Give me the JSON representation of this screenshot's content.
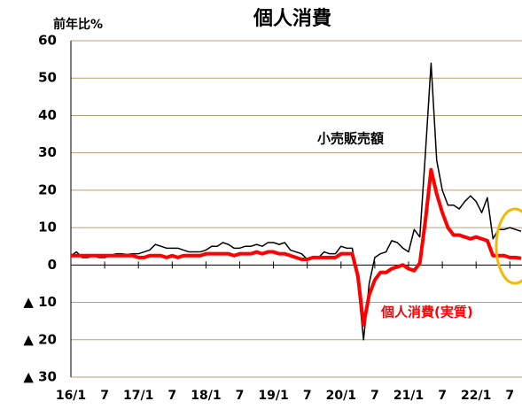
{
  "chart_data": {
    "type": "line",
    "title": "個人消費",
    "y_label": "前年比%",
    "categories": [
      "16/1",
      null,
      null,
      null,
      null,
      null,
      "7",
      null,
      null,
      null,
      null,
      null,
      "17/1",
      null,
      null,
      null,
      null,
      null,
      "7",
      null,
      null,
      null,
      null,
      null,
      "18/1",
      null,
      null,
      null,
      null,
      null,
      "7",
      null,
      null,
      null,
      null,
      null,
      "19/1",
      null,
      null,
      null,
      null,
      null,
      "7",
      null,
      null,
      null,
      null,
      null,
      "20/1",
      null,
      null,
      null,
      null,
      null,
      "7",
      null,
      null,
      null,
      null,
      null,
      "21/1",
      null,
      null,
      null,
      null,
      null,
      "7",
      null,
      null,
      null,
      null,
      null,
      "22/1",
      null,
      null,
      null,
      null,
      null,
      "7",
      null,
      null
    ],
    "series": [
      {
        "name": "小売販売額",
        "color": "#000000",
        "values": [
          2.5,
          3.5,
          2,
          2,
          2.5,
          2,
          2,
          2.5,
          3,
          3,
          2.8,
          3,
          3,
          3.5,
          4,
          5.5,
          5,
          4.5,
          4.5,
          4.5,
          4,
          3.5,
          3.5,
          3.5,
          4,
          5,
          5,
          6,
          5.5,
          4.5,
          4.5,
          5,
          5,
          5.5,
          5,
          6,
          6,
          5.5,
          6,
          4,
          3.5,
          3,
          1.5,
          2,
          2,
          3.5,
          3,
          3,
          5,
          4.5,
          4.5,
          -5,
          -20,
          -5,
          2,
          3,
          3.5,
          6.5,
          6,
          4.5,
          3.5,
          9.5,
          7.5,
          30,
          54,
          28,
          20,
          16,
          16,
          15,
          17,
          18.5,
          17,
          14,
          18,
          7,
          9.5,
          9.5,
          10,
          9.5,
          9
        ]
      },
      {
        "name": "個人消費(実質)",
        "color": "#ff0000",
        "values": [
          2.5,
          2.5,
          2.5,
          2.5,
          2.5,
          2.5,
          2.5,
          2.5,
          2.5,
          2.5,
          2.5,
          2.5,
          2,
          2,
          2.5,
          2.5,
          2.5,
          2,
          2.5,
          2,
          2.5,
          2.5,
          2.5,
          2.5,
          3,
          3,
          3,
          3,
          3,
          2.5,
          3,
          3,
          3,
          3.5,
          3,
          3.5,
          3.5,
          3,
          3,
          2.5,
          2,
          1.5,
          1.5,
          2,
          2,
          2,
          2,
          2,
          3,
          3,
          3,
          -3,
          -16,
          -8,
          -4,
          -2,
          -2,
          -1,
          -0.5,
          0,
          -1,
          -1.5,
          0.5,
          12,
          25.5,
          19,
          14,
          10,
          8,
          8,
          7.5,
          7,
          7.5,
          7,
          6.5,
          2.5,
          2.5,
          2.5,
          2,
          2,
          1.8
        ]
      }
    ],
    "ylim": [
      -30,
      60
    ],
    "yticks": [
      {
        "value": -30,
        "label": "▲ 30"
      },
      {
        "value": -20,
        "label": "▲ 20"
      },
      {
        "value": -10,
        "label": "▲ 10"
      },
      0,
      10,
      20,
      30,
      40,
      50,
      60
    ],
    "grid": true
  }
}
